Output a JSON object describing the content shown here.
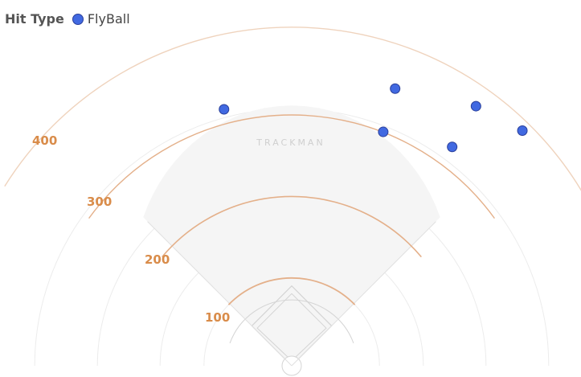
{
  "legend": {
    "title": "Hit Type",
    "label": "FlyBall"
  },
  "watermark": "TRACKMAN",
  "colors": {
    "point": "#4169e1",
    "point_stroke": "#2a3f9a",
    "arc": "#e4b08a",
    "arc_outer": "#efd3bd",
    "label": "#d98c4a",
    "fair_territory": "#f5f5f5",
    "infield_line": "#d4d4d4"
  },
  "chart_data": {
    "type": "scatter",
    "title": "",
    "xlabel": "",
    "ylabel": "",
    "distance_labels": [
      "100",
      "200",
      "300",
      "400"
    ],
    "series": [
      {
        "name": "FlyBall",
        "points": [
          {
            "x": -108,
            "y": 409
          },
          {
            "x": 165,
            "y": 442
          },
          {
            "x": 146,
            "y": 373
          },
          {
            "x": 294,
            "y": 414
          },
          {
            "x": 256,
            "y": 349
          },
          {
            "x": 368,
            "y": 375
          }
        ]
      }
    ]
  }
}
